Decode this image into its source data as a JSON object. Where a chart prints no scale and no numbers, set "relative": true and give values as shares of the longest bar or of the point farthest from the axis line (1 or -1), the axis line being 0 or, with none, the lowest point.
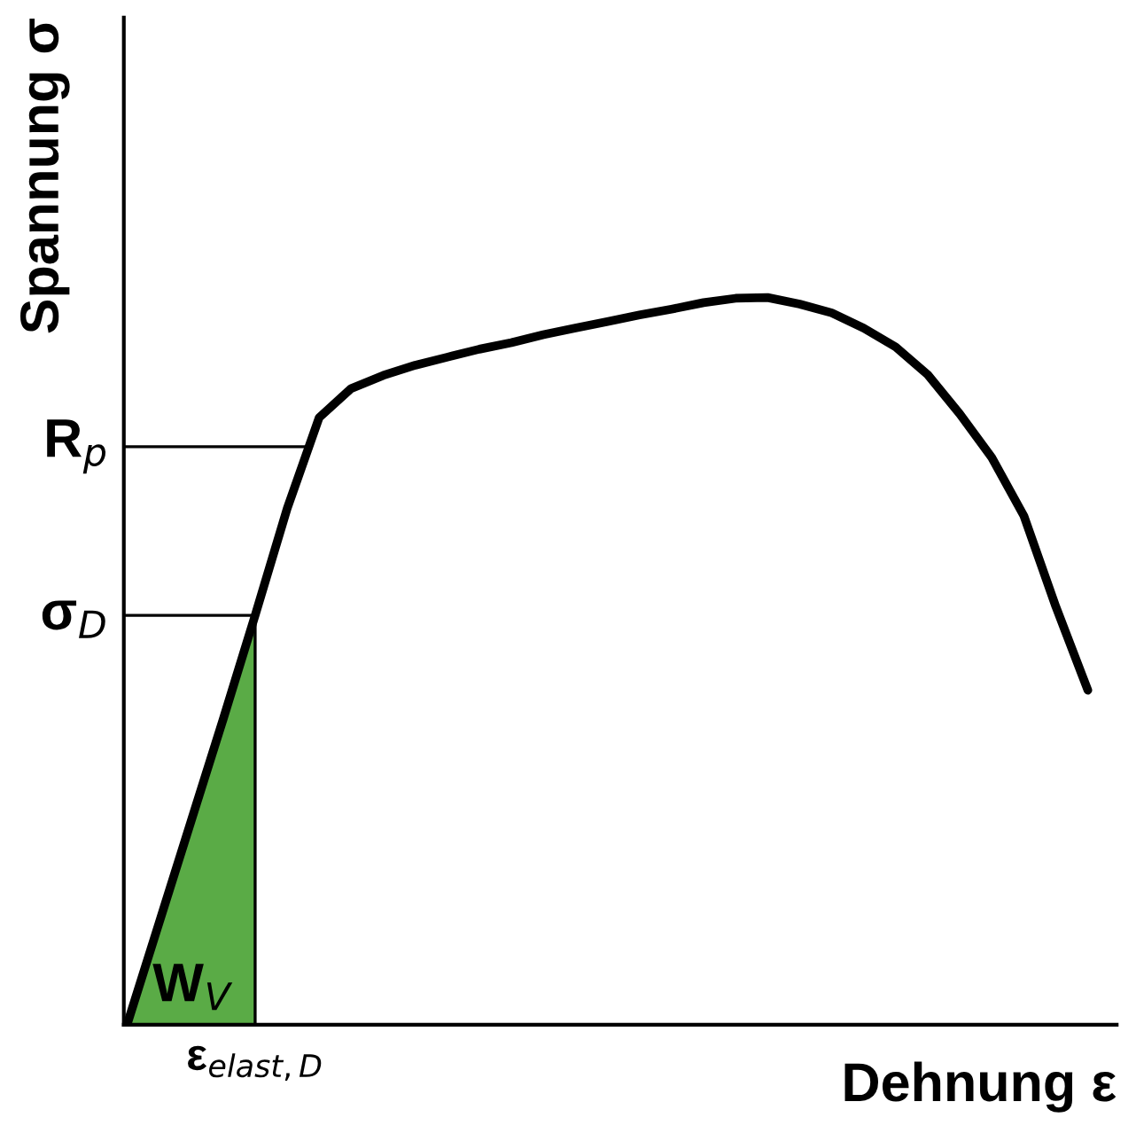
{
  "chart_data": {
    "type": "line",
    "relative": true,
    "xlabel": "Dehnung ε",
    "ylabel": "Spannung σ",
    "marker": "none",
    "line_style": "solid",
    "categories": [
      null,
      null,
      null,
      null,
      null,
      null,
      null,
      null,
      null,
      null,
      null,
      null,
      null,
      null,
      null,
      null,
      null,
      null,
      null,
      null,
      null,
      null,
      null,
      null,
      null,
      null,
      null,
      null,
      null,
      null,
      null
    ],
    "series": [
      {
        "color": "#000000",
        "values": [
          0,
          0.14,
          0.28,
          0.42,
          0.563,
          0.71,
          0.835,
          0.875,
          0.893,
          0.907,
          0.918,
          0.929,
          0.938,
          0.949,
          0.958,
          0.967,
          0.976,
          0.984,
          0.993,
          0.999,
          1.0,
          0.991,
          0.979,
          0.958,
          0.932,
          0.894,
          0.84,
          0.78,
          0.7,
          0.575,
          0.46
        ]
      },
      {
        "type": "area",
        "name": "W$_{V}$",
        "color": "#5aab46",
        "values": [
          0,
          0.14,
          0.28,
          0.42,
          0.563,
          null,
          null,
          null,
          null,
          null,
          null,
          null,
          null,
          null,
          null,
          null,
          null,
          null,
          null,
          null,
          null,
          null,
          null,
          null,
          null,
          null,
          null,
          null,
          null,
          null,
          null
        ]
      }
    ],
    "ref_lines": [
      {
        "axis": "y",
        "value": 0.795,
        "label": "R$_{p}$",
        "color": "#000000"
      },
      {
        "axis": "y",
        "value": 0.563,
        "label": "σ$_{D}$",
        "color": "#000000"
      }
    ],
    "annotations": [
      "ε$_{elast,D}$"
    ]
  }
}
